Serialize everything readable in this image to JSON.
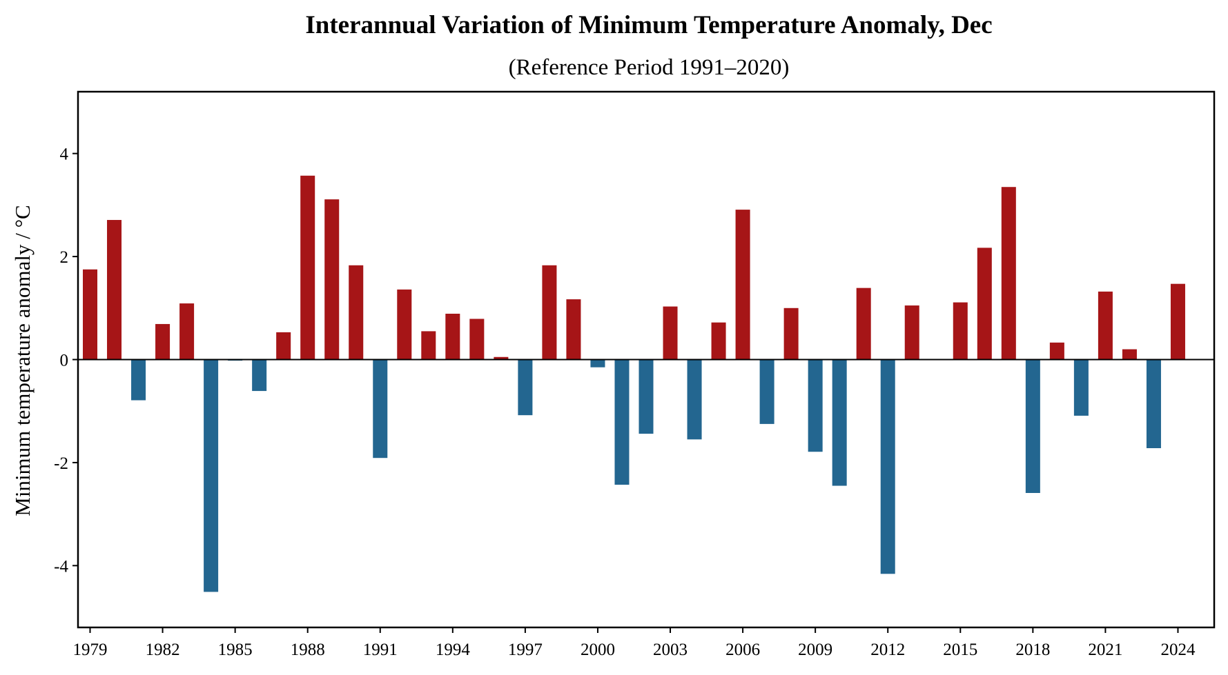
{
  "chart_data": {
    "type": "bar",
    "title": "Interannual Variation of Minimum Temperature Anomaly, Dec",
    "subtitle": "(Reference Period 1991–2020)",
    "xlabel": "",
    "ylabel": "Minimum temperature anomaly / °C",
    "xlim": [
      1978.5,
      2025.5
    ],
    "ylim": [
      -5.2,
      5.2
    ],
    "x_ticks": [
      1979,
      1982,
      1985,
      1988,
      1991,
      1994,
      1997,
      2000,
      2003,
      2006,
      2009,
      2012,
      2015,
      2018,
      2021,
      2024
    ],
    "y_ticks": [
      -4,
      -2,
      0,
      2,
      4
    ],
    "grid": false,
    "legend": null,
    "positive_color": "#a61517",
    "negative_color": "#236690",
    "zero_line": true,
    "categories": [
      1979,
      1980,
      1981,
      1982,
      1983,
      1984,
      1985,
      1986,
      1987,
      1988,
      1989,
      1990,
      1991,
      1992,
      1993,
      1994,
      1995,
      1996,
      1997,
      1998,
      1999,
      2000,
      2001,
      2002,
      2003,
      2004,
      2005,
      2006,
      2007,
      2008,
      2009,
      2010,
      2011,
      2012,
      2013,
      2014,
      2015,
      2016,
      2017,
      2018,
      2019,
      2020,
      2021,
      2022,
      2023,
      2024
    ],
    "values": [
      1.75,
      2.71,
      -0.79,
      0.69,
      1.09,
      -4.51,
      -0.02,
      -0.61,
      0.53,
      3.57,
      3.11,
      1.83,
      -1.91,
      1.36,
      0.55,
      0.89,
      0.79,
      0.05,
      -1.08,
      1.83,
      1.17,
      -0.15,
      -2.43,
      -1.44,
      1.03,
      -1.55,
      0.72,
      2.91,
      -1.25,
      1.0,
      -1.79,
      -2.45,
      1.39,
      -4.16,
      1.05,
      0.0,
      1.11,
      2.17,
      3.35,
      -2.59,
      0.33,
      -1.09,
      1.32,
      0.2,
      -1.72,
      1.47
    ]
  }
}
